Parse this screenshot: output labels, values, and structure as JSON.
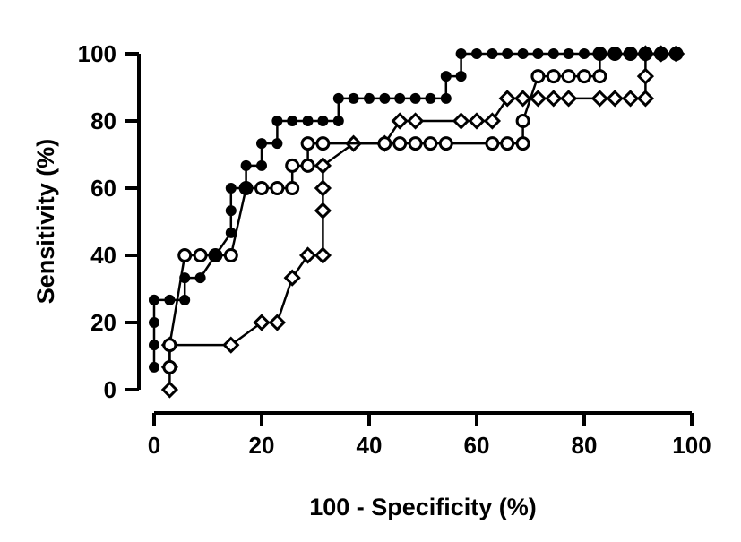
{
  "chart_data": {
    "type": "line",
    "xlabel": "100 - Specificity (%)",
    "ylabel": "Sensitivity (%)",
    "xlim": [
      0,
      100
    ],
    "ylim": [
      0,
      100
    ],
    "xticks": [
      "0",
      "20",
      "40",
      "60",
      "80",
      "100"
    ],
    "yticks": [
      "0",
      "20",
      "40",
      "60",
      "80",
      "100"
    ],
    "grid": false,
    "legend": "none",
    "series": [
      {
        "marker": "filled-circle",
        "x": [
          0,
          0,
          0,
          0,
          0,
          2.9,
          5.7,
          5.7,
          8.6,
          11.4,
          14.3,
          14.3,
          14.3,
          17.1,
          17.1,
          20,
          20,
          22.9,
          22.9,
          25.7,
          28.6,
          31.4,
          34.3,
          34.3,
          37.1,
          40,
          42.9,
          45.7,
          48.6,
          51.4,
          54.3,
          54.3,
          57.1,
          57.1,
          60,
          62.9,
          65.7,
          68.6,
          71.4,
          74.3,
          77.1,
          80,
          82.9,
          85.7,
          88.6,
          91.4,
          94.3,
          97.1
        ],
        "y": [
          6.7,
          13.3,
          20,
          26.7,
          26.7,
          26.7,
          26.7,
          33.3,
          33.3,
          40,
          46.7,
          53.3,
          60,
          60,
          66.7,
          66.7,
          73.3,
          73.3,
          80,
          80,
          80,
          80,
          80,
          86.7,
          86.7,
          86.7,
          86.7,
          86.7,
          86.7,
          86.7,
          86.7,
          93.3,
          93.3,
          100,
          100,
          100,
          100,
          100,
          100,
          100,
          100,
          100,
          100,
          100,
          100,
          100,
          100,
          100
        ]
      },
      {
        "marker": "open-circle",
        "x": [
          2.9,
          2.9,
          5.7,
          8.6,
          11.4,
          14.3,
          17.1,
          20,
          22.9,
          25.7,
          25.7,
          28.6,
          28.6,
          31.4,
          42.9,
          45.7,
          48.6,
          51.4,
          54.3,
          62.9,
          65.7,
          68.6,
          68.6,
          71.4,
          74.3,
          77.1,
          80,
          82.9,
          82.9,
          85.7,
          88.6,
          91.4,
          94.3,
          97.1
        ],
        "y": [
          6.7,
          13.3,
          40,
          40,
          40,
          40,
          60,
          60,
          60,
          60,
          66.7,
          66.7,
          73.3,
          73.3,
          73.3,
          73.3,
          73.3,
          73.3,
          73.3,
          73.3,
          73.3,
          73.3,
          80,
          93.3,
          93.3,
          93.3,
          93.3,
          93.3,
          100,
          100,
          100,
          100,
          100,
          100
        ]
      },
      {
        "marker": "open-diamond",
        "x": [
          2.9,
          2.9,
          2.9,
          14.3,
          20,
          22.9,
          25.7,
          28.6,
          31.4,
          31.4,
          31.4,
          31.4,
          37.1,
          42.9,
          45.7,
          48.6,
          57.1,
          60,
          62.9,
          65.7,
          68.6,
          71.4,
          74.3,
          77.1,
          82.9,
          85.7,
          88.6,
          91.4,
          91.4,
          91.4,
          94.3,
          97.1
        ],
        "y": [
          0,
          6.7,
          13.3,
          13.3,
          20,
          20,
          33.3,
          40,
          40,
          53.3,
          60,
          66.7,
          73.3,
          73.3,
          80,
          80,
          80,
          80,
          80,
          86.7,
          86.7,
          86.7,
          86.7,
          86.7,
          86.7,
          86.7,
          86.7,
          86.7,
          93.3,
          100,
          100,
          100
        ]
      }
    ]
  }
}
